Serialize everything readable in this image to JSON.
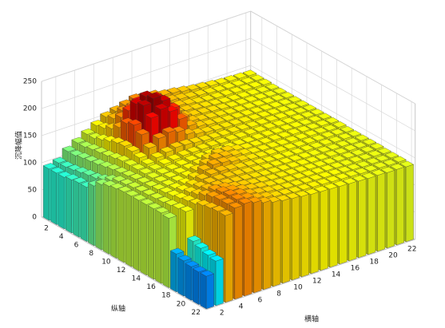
{
  "chart_data": {
    "type": "bar3",
    "xlabel": "横轴",
    "ylabel": "纵轴",
    "zlabel": "沉降幅值",
    "x": [
      1,
      2,
      3,
      4,
      5,
      6,
      7,
      8,
      9,
      10,
      11,
      12,
      13,
      14,
      15,
      16,
      17,
      18,
      19,
      20,
      21,
      22
    ],
    "y": [
      1,
      2,
      3,
      4,
      5,
      6,
      7,
      8,
      9,
      10,
      11,
      12,
      13,
      14,
      15,
      16,
      17,
      18,
      19,
      20,
      21,
      22
    ],
    "z": [
      [
        95,
        100,
        115,
        125,
        135,
        145,
        155,
        160,
        165,
        170,
        168,
        165,
        160,
        158,
        155,
        152,
        150,
        148,
        146,
        145,
        144,
        143
      ],
      [
        95,
        100,
        115,
        125,
        135,
        148,
        160,
        168,
        170,
        170,
        165,
        160,
        158,
        155,
        152,
        150,
        148,
        146,
        145,
        144,
        143,
        142
      ],
      [
        95,
        102,
        118,
        128,
        140,
        155,
        170,
        180,
        178,
        172,
        165,
        160,
        156,
        153,
        150,
        148,
        147,
        146,
        145,
        144,
        143,
        142
      ],
      [
        98,
        105,
        120,
        130,
        145,
        165,
        190,
        200,
        195,
        180,
        165,
        158,
        155,
        152,
        150,
        148,
        146,
        145,
        144,
        143,
        142,
        141
      ],
      [
        100,
        108,
        122,
        132,
        150,
        180,
        210,
        218,
        210,
        190,
        168,
        158,
        154,
        152,
        150,
        148,
        146,
        145,
        144,
        143,
        142,
        141
      ],
      [
        100,
        110,
        125,
        135,
        152,
        185,
        215,
        222,
        212,
        192,
        168,
        157,
        153,
        151,
        149,
        147,
        146,
        145,
        144,
        143,
        142,
        141
      ],
      [
        110,
        115,
        128,
        138,
        150,
        175,
        200,
        210,
        200,
        180,
        162,
        155,
        152,
        150,
        148,
        147,
        146,
        145,
        144,
        143,
        142,
        141
      ],
      [
        120,
        122,
        130,
        138,
        146,
        158,
        170,
        175,
        170,
        160,
        155,
        152,
        150,
        149,
        148,
        147,
        146,
        145,
        144,
        143,
        142,
        141
      ],
      [
        125,
        128,
        132,
        138,
        142,
        148,
        152,
        155,
        154,
        152,
        150,
        149,
        148,
        148,
        147,
        146,
        145,
        145,
        144,
        143,
        142,
        141
      ],
      [
        128,
        130,
        134,
        138,
        140,
        144,
        146,
        148,
        148,
        148,
        148,
        147,
        147,
        146,
        146,
        145,
        145,
        144,
        143,
        143,
        142,
        141
      ],
      [
        130,
        132,
        135,
        138,
        140,
        142,
        144,
        146,
        146,
        146,
        146,
        146,
        146,
        145,
        145,
        145,
        144,
        144,
        143,
        142,
        142,
        141
      ],
      [
        130,
        133,
        136,
        139,
        141,
        143,
        145,
        148,
        152,
        155,
        154,
        150,
        147,
        146,
        145,
        145,
        144,
        144,
        143,
        142,
        142,
        141
      ],
      [
        130,
        134,
        138,
        140,
        142,
        145,
        150,
        156,
        160,
        158,
        154,
        150,
        147,
        146,
        145,
        144,
        144,
        143,
        143,
        142,
        141,
        141
      ],
      [
        130,
        135,
        140,
        142,
        145,
        150,
        158,
        162,
        160,
        156,
        152,
        149,
        147,
        146,
        145,
        144,
        143,
        143,
        142,
        142,
        141,
        140
      ],
      [
        130,
        136,
        142,
        146,
        150,
        155,
        158,
        158,
        155,
        152,
        150,
        148,
        146,
        145,
        144,
        143,
        143,
        142,
        142,
        141,
        141,
        140
      ],
      [
        130,
        138,
        145,
        150,
        154,
        156,
        156,
        155,
        153,
        151,
        149,
        147,
        146,
        145,
        144,
        143,
        142,
        142,
        141,
        141,
        140,
        140
      ],
      [
        128,
        140,
        148,
        154,
        158,
        158,
        156,
        154,
        152,
        150,
        148,
        147,
        146,
        145,
        144,
        143,
        142,
        142,
        141,
        141,
        140,
        140
      ],
      [
        70,
        142,
        150,
        160,
        164,
        162,
        158,
        155,
        152,
        150,
        148,
        147,
        146,
        145,
        144,
        143,
        142,
        141,
        141,
        140,
        140,
        140
      ],
      [
        65,
        95,
        155,
        165,
        168,
        165,
        160,
        156,
        153,
        150,
        148,
        147,
        146,
        145,
        144,
        143,
        142,
        141,
        141,
        140,
        140,
        139
      ],
      [
        62,
        90,
        158,
        168,
        170,
        166,
        160,
        156,
        153,
        150,
        148,
        147,
        146,
        145,
        144,
        143,
        142,
        141,
        140,
        140,
        139,
        139
      ],
      [
        60,
        85,
        160,
        168,
        170,
        166,
        160,
        156,
        152,
        150,
        148,
        147,
        146,
        145,
        144,
        143,
        142,
        141,
        140,
        140,
        139,
        139
      ],
      [
        60,
        82,
        160,
        168,
        170,
        166,
        160,
        155,
        152,
        150,
        148,
        146,
        145,
        144,
        143,
        142,
        141,
        140,
        140,
        139,
        139,
        138
      ]
    ],
    "xlim": [
      0.5,
      22.5
    ],
    "ylim": [
      0.5,
      22.5
    ],
    "zlim": [
      0,
      250
    ],
    "xticks": [
      2,
      4,
      6,
      8,
      10,
      12,
      14,
      16,
      18,
      20,
      22
    ],
    "yticks": [
      2,
      4,
      6,
      8,
      10,
      12,
      14,
      16,
      18,
      20,
      22
    ],
    "zticks": [
      0,
      50,
      100,
      150,
      200,
      250
    ],
    "grid": true,
    "colormap": "jet",
    "clim": [
      0,
      230
    ]
  }
}
